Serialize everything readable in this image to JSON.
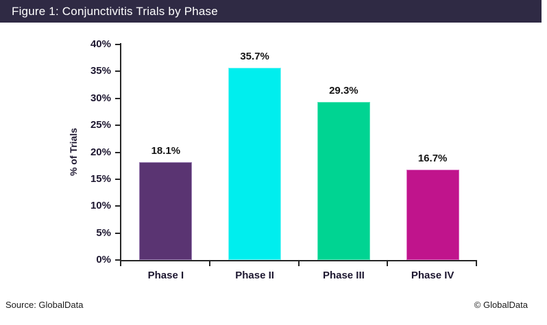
{
  "header": {
    "title": "Figure 1: Conjunctivitis Trials by Phase",
    "bg_color": "#2F2A44"
  },
  "footer": {
    "source": "Source: GlobalData",
    "copyright": "© GlobalData"
  },
  "chart_data": {
    "type": "bar",
    "title": "Figure 1: Conjunctivitis Trials by Phase",
    "categories": [
      "Phase I",
      "Phase II",
      "Phase III",
      "Phase IV"
    ],
    "values": [
      18.1,
      35.7,
      29.3,
      16.7
    ],
    "value_labels": [
      "18.1%",
      "35.7%",
      "29.3%",
      "16.7%"
    ],
    "bar_colors": [
      "#5A3472",
      "#00EEEE",
      "#00D492",
      "#C0148C"
    ],
    "bar_border_colors": [
      "#9B7FB3",
      "#7FF5F5",
      "#5CE7BC",
      "#DA66BE"
    ],
    "xlabel": "",
    "ylabel": "% of Trials",
    "ylim": [
      0,
      40
    ],
    "ytick_labels": [
      "0%",
      "5%",
      "10%",
      "15%",
      "20%",
      "25%",
      "30%",
      "35%",
      "40%"
    ],
    "ytick_values": [
      0,
      5,
      10,
      15,
      20,
      25,
      30,
      35,
      40
    ],
    "grid": false,
    "legend_position": "none",
    "axis_color": "#262626"
  }
}
